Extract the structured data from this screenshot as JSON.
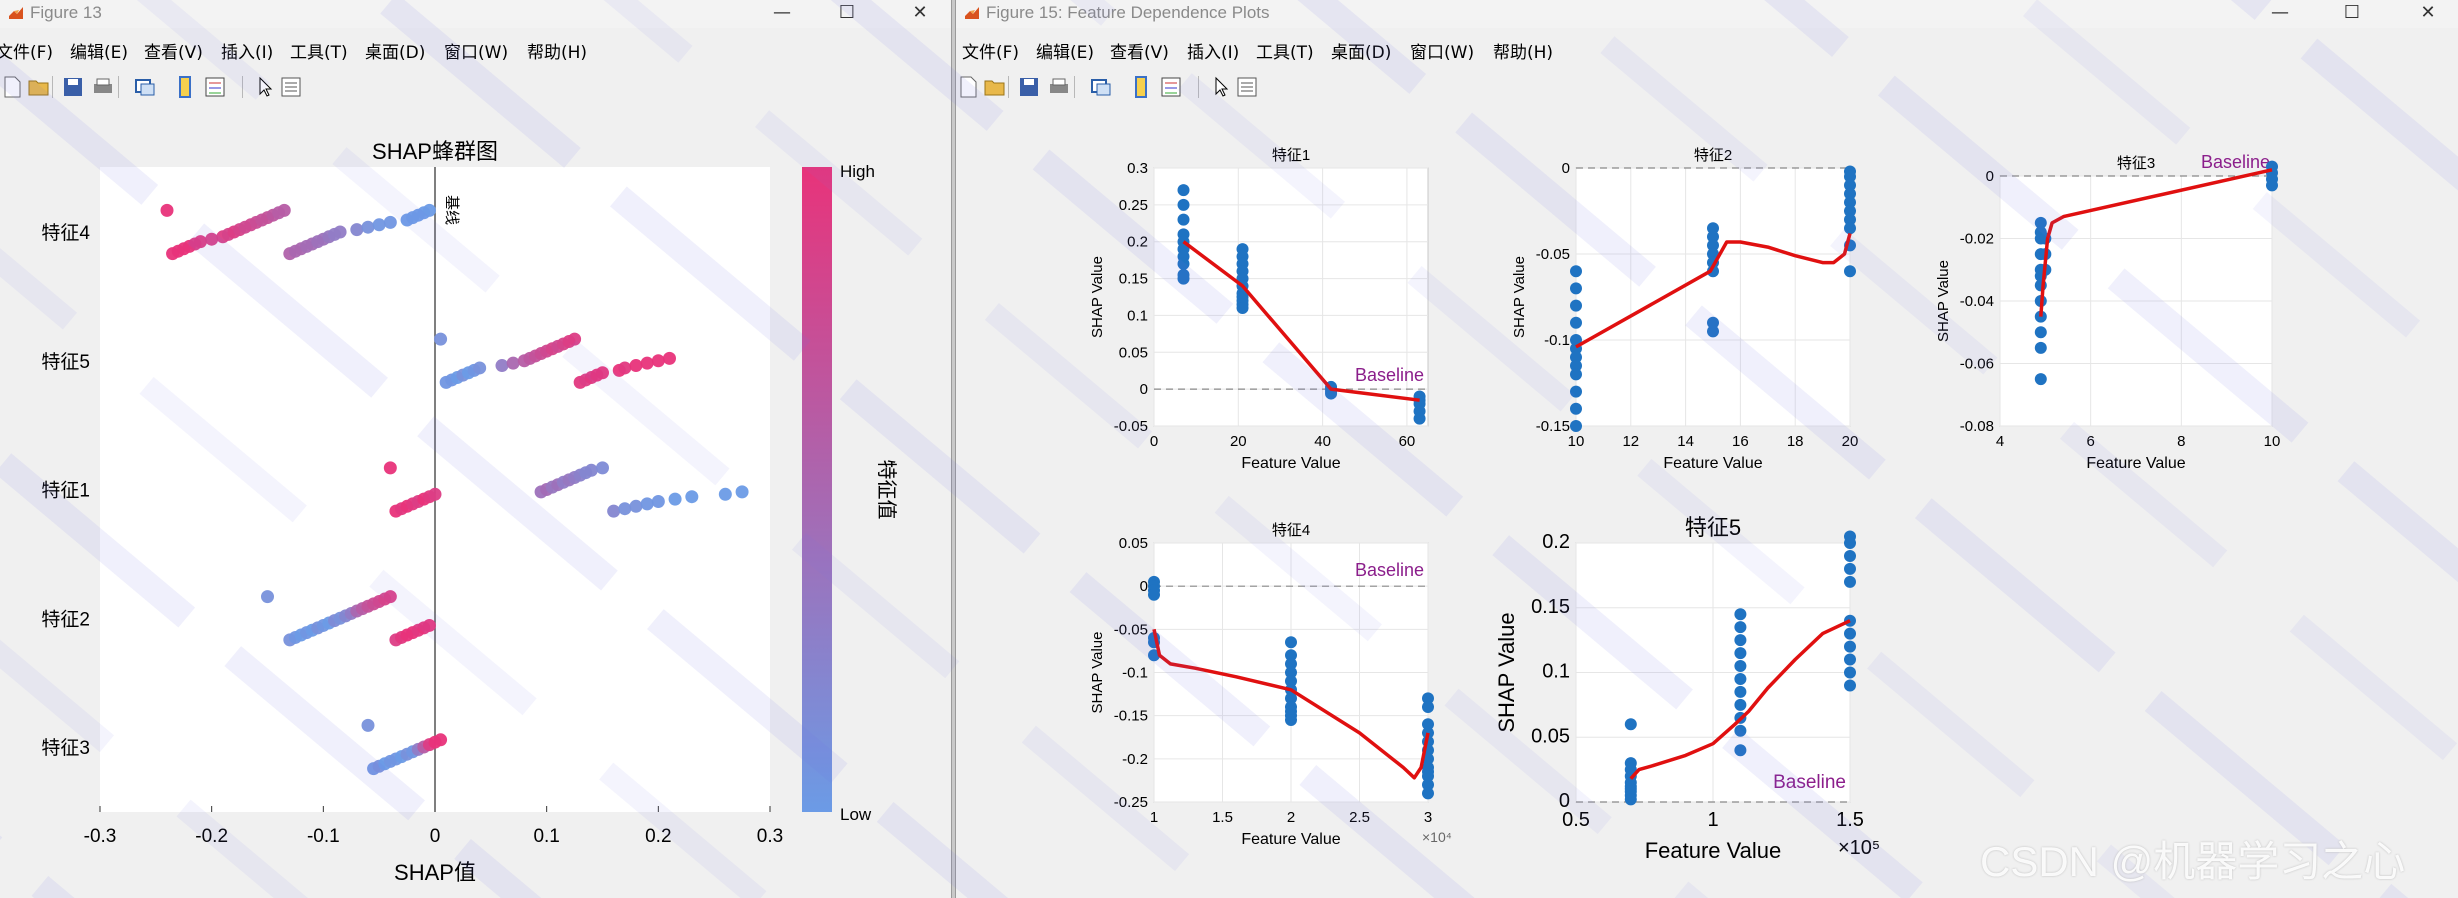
{
  "window1": {
    "title": "Figure 13",
    "menus": [
      "文件(F)",
      "编辑(E)",
      "查看(V)",
      "插入(I)",
      "工具(T)",
      "桌面(D)",
      "窗口(W)",
      "帮助(H)"
    ],
    "toolbar": [
      "new-file-icon",
      "open-folder-icon",
      "save-icon",
      "print-icon",
      "link-plot-icon",
      "colorbar-icon",
      "legend-icon",
      "pointer-icon",
      "property-editor-icon"
    ]
  },
  "window2": {
    "title": "Figure 15: Feature Dependence Plots",
    "menus": [
      "文件(F)",
      "编辑(E)",
      "查看(V)",
      "插入(I)",
      "工具(T)",
      "桌面(D)",
      "窗口(W)",
      "帮助(H)"
    ],
    "toolbar": [
      "new-file-icon",
      "open-folder-icon",
      "save-icon",
      "print-icon",
      "link-plot-icon",
      "colorbar-icon",
      "legend-icon",
      "pointer-icon",
      "property-editor-icon"
    ]
  },
  "colors": {
    "high": "#e8337a",
    "low": "#6b9be6",
    "trend": "#e01010",
    "points": "#1f73c2",
    "baseline": "#8b1e8b"
  },
  "chart_data": [
    {
      "type": "scatter",
      "title": "SHAP蜂群图",
      "xlabel": "SHAP值",
      "ylabel": "",
      "xlim": [
        -0.3,
        0.3
      ],
      "xticks": [
        "-0.3",
        "-0.2",
        "-0.1",
        "0",
        "0.1",
        "0.2",
        "0.3"
      ],
      "categories": [
        "特征4",
        "特征5",
        "特征1",
        "特征2",
        "特征3"
      ],
      "zero_line_label": "基线",
      "colorbar": {
        "label": "特征值",
        "high": "High",
        "low": "Low"
      },
      "series": [
        {
          "category": "特征4",
          "x": [
            -0.24,
            -0.235,
            -0.23,
            -0.225,
            -0.22,
            -0.215,
            -0.21,
            -0.2,
            -0.19,
            -0.185,
            -0.18,
            -0.175,
            -0.17,
            -0.165,
            -0.16,
            -0.155,
            -0.15,
            -0.145,
            -0.14,
            -0.135,
            -0.13,
            -0.125,
            -0.12,
            -0.115,
            -0.11,
            -0.105,
            -0.1,
            -0.095,
            -0.09,
            -0.085,
            -0.07,
            -0.06,
            -0.05,
            -0.04,
            -0.025,
            -0.02,
            -0.015,
            -0.01,
            -0.005
          ],
          "c": [
            1,
            1,
            1,
            1,
            1,
            0.95,
            0.95,
            0.9,
            0.9,
            0.85,
            0.9,
            0.85,
            0.8,
            0.8,
            0.75,
            0.7,
            0.7,
            0.65,
            0.6,
            0.6,
            0.55,
            0.5,
            0.5,
            0.45,
            0.45,
            0.4,
            0.4,
            0.35,
            0.3,
            0.3,
            0.2,
            0.1,
            0.05,
            0.05,
            0,
            0,
            0,
            0,
            0
          ]
        },
        {
          "category": "特征5",
          "x": [
            0.005,
            0.01,
            0.015,
            0.02,
            0.025,
            0.03,
            0.035,
            0.04,
            0.06,
            0.07,
            0.08,
            0.085,
            0.09,
            0.095,
            0.1,
            0.105,
            0.11,
            0.115,
            0.12,
            0.125,
            0.13,
            0.135,
            0.14,
            0.145,
            0.15,
            0.165,
            0.17,
            0.18,
            0.19,
            0.2,
            0.21
          ],
          "c": [
            0.1,
            0.05,
            0.05,
            0,
            0.1,
            0,
            0.05,
            0.1,
            0.3,
            0.5,
            0.6,
            0.65,
            0.7,
            0.75,
            0.8,
            0.85,
            0.8,
            0.85,
            0.9,
            0.9,
            0.95,
            0.9,
            0.95,
            1,
            1,
            1,
            0.95,
            1,
            1,
            1,
            1
          ]
        },
        {
          "category": "特征1",
          "x": [
            -0.04,
            -0.035,
            -0.03,
            -0.025,
            -0.02,
            -0.015,
            -0.01,
            -0.005,
            0,
            0.095,
            0.1,
            0.105,
            0.11,
            0.115,
            0.12,
            0.125,
            0.13,
            0.135,
            0.14,
            0.15,
            0.16,
            0.17,
            0.18,
            0.19,
            0.2,
            0.215,
            0.23,
            0.26,
            0.275
          ],
          "c": [
            1,
            1,
            0.95,
            1,
            0.95,
            0.9,
            1,
            0.95,
            0.9,
            0.4,
            0.45,
            0.35,
            0.4,
            0.3,
            0.35,
            0.3,
            0.25,
            0.2,
            0.2,
            0.15,
            0.2,
            0.1,
            0.1,
            0.05,
            0.05,
            0,
            0,
            0,
            0
          ]
        },
        {
          "category": "特征2",
          "x": [
            -0.15,
            -0.13,
            -0.125,
            -0.12,
            -0.115,
            -0.11,
            -0.105,
            -0.1,
            -0.095,
            -0.09,
            -0.085,
            -0.08,
            -0.075,
            -0.07,
            -0.065,
            -0.06,
            -0.055,
            -0.05,
            -0.045,
            -0.04,
            -0.035,
            -0.03,
            -0.025,
            -0.02,
            -0.015,
            -0.01,
            -0.005
          ],
          "c": [
            0.1,
            0.1,
            0.05,
            0,
            0.05,
            0,
            0.1,
            0.05,
            0,
            0.15,
            0.1,
            0.2,
            0.3,
            0.5,
            0.6,
            0.7,
            0.75,
            0.8,
            0.85,
            0.9,
            0.9,
            0.95,
            1,
            1,
            0.95,
            1,
            1
          ]
        },
        {
          "category": "特征3",
          "x": [
            -0.06,
            -0.055,
            -0.05,
            -0.045,
            -0.04,
            -0.035,
            -0.03,
            -0.025,
            -0.02,
            -0.015,
            -0.01,
            -0.005,
            0,
            0.005
          ],
          "c": [
            0.1,
            0.05,
            0.1,
            0,
            0.05,
            0.05,
            0,
            0.1,
            0.05,
            0.3,
            0.6,
            0.9,
            1,
            1
          ]
        }
      ]
    },
    {
      "type": "scatter",
      "title": "特征1",
      "xlabel": "Feature Value",
      "ylabel": "SHAP Value",
      "xlim": [
        0,
        65
      ],
      "ylim": [
        -0.05,
        0.3
      ],
      "xticks": [
        "0",
        "20",
        "40",
        "60"
      ],
      "yticks": [
        "-0.05",
        "0",
        "0.05",
        "0.1",
        "0.15",
        "0.2",
        "0.25",
        "0.3"
      ],
      "baseline_label": "Baseline",
      "points": {
        "x": [
          7,
          7,
          7,
          7,
          7,
          7,
          7,
          7,
          7,
          7,
          21,
          21,
          21,
          21,
          21,
          21,
          21,
          21,
          21,
          21,
          21,
          42,
          42,
          42,
          42,
          63,
          63,
          63,
          63,
          63
        ],
        "y": [
          0.27,
          0.25,
          0.23,
          0.21,
          0.2,
          0.19,
          0.18,
          0.17,
          0.155,
          0.15,
          0.19,
          0.18,
          0.17,
          0.16,
          0.15,
          0.14,
          0.13,
          0.125,
          0.12,
          0.115,
          0.11,
          0.003,
          0,
          -0.003,
          -0.006,
          -0.01,
          -0.015,
          -0.02,
          -0.03,
          -0.04
        ]
      },
      "trend": {
        "x": [
          7,
          21,
          42,
          63
        ],
        "y": [
          0.2,
          0.14,
          0.0,
          -0.015
        ]
      }
    },
    {
      "type": "scatter",
      "title": "特征2",
      "xlabel": "Feature Value",
      "ylabel": "SHAP Value",
      "xlim": [
        10,
        20
      ],
      "ylim": [
        -0.15,
        0
      ],
      "xticks": [
        "10",
        "12",
        "14",
        "16",
        "18",
        "20"
      ],
      "yticks": [
        "-0.15",
        "-0.1",
        "-0.05",
        "0"
      ],
      "points": {
        "x": [
          10,
          10,
          10,
          10,
          10,
          10,
          10,
          10,
          10,
          10,
          10,
          10,
          15,
          15,
          15,
          15,
          15,
          15,
          15,
          15,
          20,
          20,
          20,
          20,
          20,
          20,
          20,
          20,
          20,
          20
        ],
        "y": [
          -0.06,
          -0.07,
          -0.08,
          -0.09,
          -0.1,
          -0.105,
          -0.11,
          -0.115,
          -0.12,
          -0.13,
          -0.14,
          -0.15,
          -0.035,
          -0.04,
          -0.045,
          -0.05,
          -0.055,
          -0.06,
          -0.09,
          -0.095,
          -0.002,
          -0.005,
          -0.01,
          -0.015,
          -0.02,
          -0.025,
          -0.03,
          -0.035,
          -0.045,
          -0.06
        ]
      },
      "trend": {
        "x": [
          10,
          14.9,
          15.5,
          16,
          17,
          18,
          19,
          19.4,
          19.8,
          20
        ],
        "y": [
          -0.104,
          -0.06,
          -0.043,
          -0.043,
          -0.046,
          -0.051,
          -0.055,
          -0.055,
          -0.05,
          -0.038
        ]
      }
    },
    {
      "type": "scatter",
      "title": "特征3",
      "xlabel": "Feature Value",
      "ylabel": "SHAP Value",
      "xlim": [
        4,
        10
      ],
      "ylim": [
        -0.08,
        0
      ],
      "xticks": [
        "4",
        "6",
        "8",
        "10"
      ],
      "yticks": [
        "-0.08",
        "-0.06",
        "-0.04",
        "-0.02",
        "0"
      ],
      "baseline_label": "Baseline",
      "points": {
        "x": [
          4.9,
          4.9,
          4.9,
          4.9,
          4.9,
          4.9,
          4.9,
          4.9,
          4.9,
          4.9,
          4.9,
          4.9,
          5,
          5,
          5,
          10,
          10,
          10,
          10
        ],
        "y": [
          -0.015,
          -0.018,
          -0.02,
          -0.025,
          -0.03,
          -0.032,
          -0.035,
          -0.04,
          -0.045,
          -0.05,
          -0.055,
          -0.065,
          -0.02,
          -0.025,
          -0.03,
          0.003,
          0.001,
          -0.001,
          -0.003
        ]
      },
      "trend": {
        "x": [
          4.9,
          4.95,
          5.05,
          5.15,
          5.4,
          10
        ],
        "y": [
          -0.045,
          -0.035,
          -0.02,
          -0.015,
          -0.013,
          0.002
        ]
      }
    },
    {
      "type": "scatter",
      "title": "特征4",
      "xlabel": "Feature Value",
      "ylabel": "SHAP Value",
      "xlim": [
        10000,
        30000
      ],
      "ylim": [
        -0.25,
        0.05
      ],
      "xticks": [
        "1",
        "1.5",
        "2",
        "2.5",
        "3"
      ],
      "yticks": [
        "-0.25",
        "-0.2",
        "-0.15",
        "-0.1",
        "-0.05",
        "0",
        "0.05"
      ],
      "x_exponent": "×10⁴",
      "baseline_label": "Baseline",
      "points": {
        "x": [
          10000,
          10000,
          10000,
          10000,
          10000,
          10000,
          10000,
          20000,
          20000,
          20000,
          20000,
          20000,
          20000,
          20000,
          20000,
          20000,
          20000,
          20000,
          30000,
          30000,
          30000,
          30000,
          30000,
          30000,
          30000,
          30000,
          30000,
          30000,
          30000,
          30000
        ],
        "y": [
          0.005,
          0.0,
          -0.005,
          -0.01,
          -0.06,
          -0.065,
          -0.08,
          -0.065,
          -0.08,
          -0.09,
          -0.1,
          -0.11,
          -0.12,
          -0.13,
          -0.14,
          -0.145,
          -0.15,
          -0.155,
          -0.13,
          -0.14,
          -0.16,
          -0.17,
          -0.18,
          -0.19,
          -0.2,
          -0.21,
          -0.215,
          -0.22,
          -0.23,
          -0.24
        ]
      },
      "trend": {
        "x": [
          10000,
          10400,
          11200,
          13000,
          16000,
          20000,
          25000,
          28200,
          29000,
          29500,
          30000
        ],
        "y": [
          -0.05,
          -0.08,
          -0.09,
          -0.095,
          -0.105,
          -0.12,
          -0.17,
          -0.21,
          -0.222,
          -0.21,
          -0.17
        ]
      }
    },
    {
      "type": "scatter",
      "title": "特征5",
      "xlabel": "Feature Value",
      "ylabel": "SHAP Value",
      "xlim": [
        50000,
        150000
      ],
      "ylim": [
        0,
        0.2
      ],
      "xticks": [
        "0.5",
        "1",
        "1.5"
      ],
      "yticks": [
        "0",
        "0.05",
        "0.1",
        "0.15",
        "0.2"
      ],
      "x_exponent": "×10⁵",
      "baseline_label": "Baseline",
      "points": {
        "x": [
          70000,
          70000,
          70000,
          70000,
          70000,
          70000,
          70000,
          70000,
          70000,
          70000,
          110000,
          110000,
          110000,
          110000,
          110000,
          110000,
          110000,
          110000,
          110000,
          110000,
          110000,
          150000,
          150000,
          150000,
          150000,
          150000,
          150000,
          150000,
          150000,
          150000,
          150000,
          150000
        ],
        "y": [
          0.06,
          0.03,
          0.025,
          0.02,
          0.015,
          0.012,
          0.01,
          0.008,
          0.005,
          0.002,
          0.145,
          0.135,
          0.125,
          0.115,
          0.105,
          0.095,
          0.085,
          0.075,
          0.065,
          0.055,
          0.04,
          0.205,
          0.2,
          0.19,
          0.18,
          0.17,
          0.14,
          0.13,
          0.12,
          0.11,
          0.1,
          0.09
        ]
      },
      "trend": {
        "x": [
          70000,
          73000,
          78000,
          90000,
          100000,
          108000,
          113000,
          120000,
          130000,
          140000,
          150000
        ],
        "y": [
          0.018,
          0.025,
          0.028,
          0.036,
          0.045,
          0.06,
          0.07,
          0.088,
          0.11,
          0.13,
          0.14
        ]
      }
    }
  ]
}
